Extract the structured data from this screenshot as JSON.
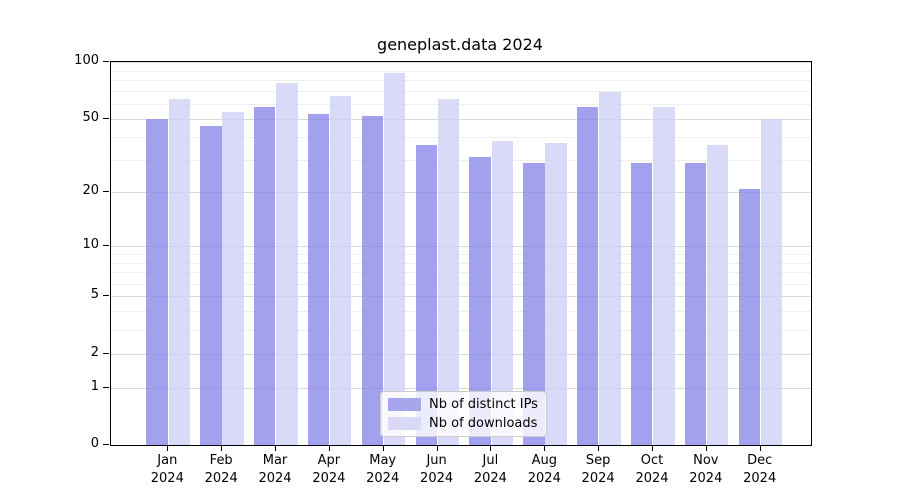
{
  "title": "geneplast.data 2024",
  "legend": {
    "series0_label": "Nb of distinct IPs",
    "series1_label": "Nb of downloads"
  },
  "colors": {
    "distinct_ips_bar": "#a6a6ed",
    "downloads_bar": "#d9d9f6",
    "major_gridline": "#d9d9d9",
    "minor_gridline": "#efefef",
    "axis": "#000000"
  },
  "chart_data": {
    "type": "bar",
    "title": "geneplast.data 2024",
    "categories": [
      "Jan 2024",
      "Feb 2024",
      "Mar 2024",
      "Apr 2024",
      "May 2024",
      "Jun 2024",
      "Jul 2024",
      "Aug 2024",
      "Sep 2024",
      "Oct 2024",
      "Nov 2024",
      "Dec 2024"
    ],
    "month_labels": [
      "Jan",
      "Feb",
      "Mar",
      "Apr",
      "May",
      "Jun",
      "Jul",
      "Aug",
      "Sep",
      "Oct",
      "Nov",
      "Dec"
    ],
    "year_label": "2024",
    "series": [
      {
        "name": "Nb of distinct IPs",
        "values": [
          50,
          46,
          58,
          53,
          52,
          36,
          31,
          29,
          58,
          29,
          29,
          21
        ]
      },
      {
        "name": "Nb of downloads",
        "values": [
          64,
          54,
          77,
          66,
          87,
          64,
          38,
          37,
          69,
          58,
          36,
          50
        ]
      }
    ],
    "xlabel": "",
    "ylabel": "",
    "yscale": "log1p",
    "ylim": [
      0,
      100
    ],
    "ytick_labels": [
      0,
      1,
      2,
      5,
      10,
      20,
      50,
      100
    ],
    "minor_grid_values": [
      3,
      4,
      6,
      7,
      8,
      9,
      30,
      40,
      60,
      70,
      80,
      90
    ],
    "grid": true,
    "legend_position": "lower center"
  }
}
